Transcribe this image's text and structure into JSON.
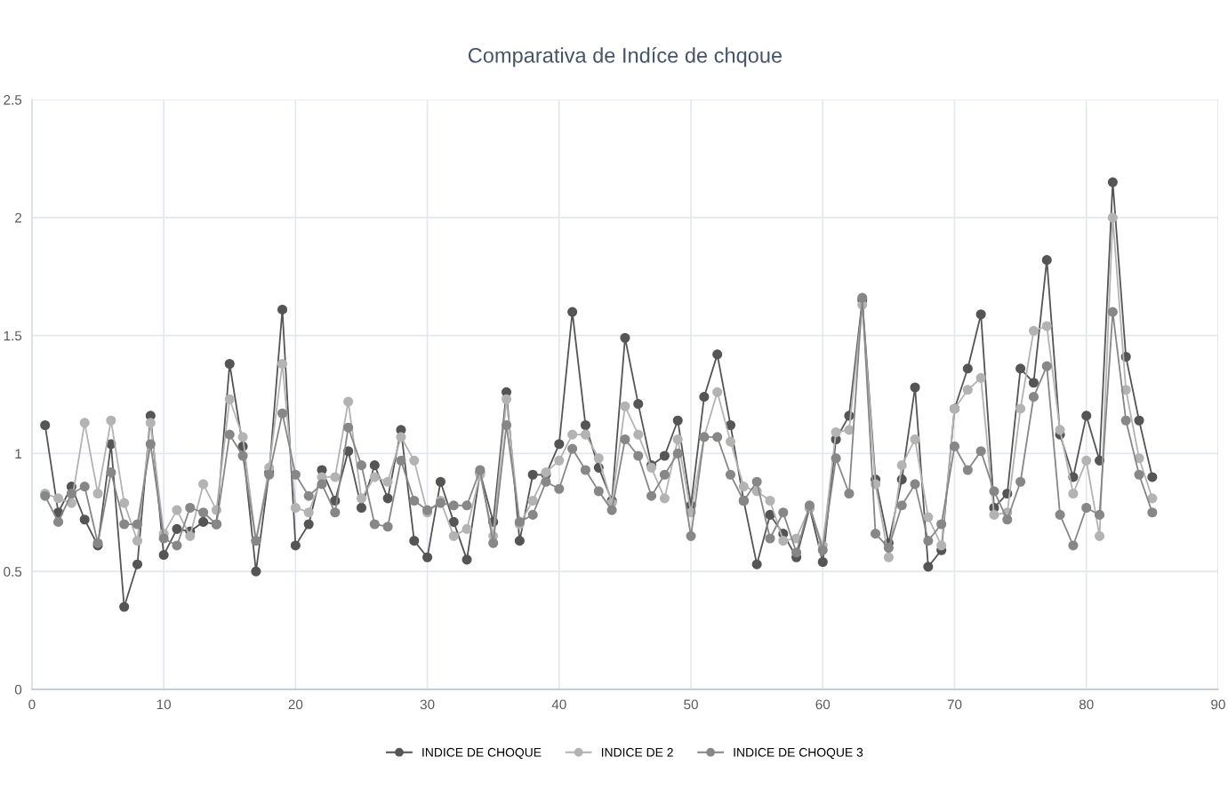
{
  "chart_data": {
    "type": "line",
    "title": "Comparativa de Indíce de chqoue",
    "x": [
      1,
      2,
      3,
      4,
      5,
      6,
      7,
      8,
      9,
      10,
      11,
      12,
      13,
      14,
      15,
      16,
      17,
      18,
      19,
      20,
      21,
      22,
      23,
      24,
      25,
      26,
      27,
      28,
      29,
      30,
      31,
      32,
      33,
      34,
      35,
      36,
      37,
      38,
      39,
      40,
      41,
      42,
      43,
      44,
      45,
      46,
      47,
      48,
      49,
      50,
      51,
      52,
      53,
      54,
      55,
      56,
      57,
      58,
      59,
      60,
      61,
      62,
      63,
      64,
      65,
      66,
      67,
      68,
      69,
      70,
      71,
      72,
      73,
      74,
      75,
      76,
      77,
      78,
      79,
      80,
      81,
      82,
      83,
      84,
      85
    ],
    "series": [
      {
        "name": "INDICE DE CHOQUE",
        "color": "#555555",
        "values": [
          1.12,
          0.75,
          0.86,
          0.72,
          0.61,
          1.04,
          0.35,
          0.53,
          1.16,
          0.57,
          0.68,
          0.67,
          0.71,
          0.7,
          1.38,
          1.03,
          0.5,
          0.92,
          1.61,
          0.61,
          0.7,
          0.93,
          0.8,
          1.01,
          0.77,
          0.95,
          0.81,
          1.1,
          0.63,
          0.56,
          0.88,
          0.71,
          0.55,
          0.92,
          0.71,
          1.26,
          0.63,
          0.91,
          0.91,
          1.04,
          1.6,
          1.12,
          0.94,
          0.8,
          1.49,
          1.21,
          0.95,
          0.99,
          1.14,
          0.78,
          1.24,
          1.42,
          1.12,
          0.8,
          0.53,
          0.74,
          0.66,
          0.56,
          0.77,
          0.54,
          1.06,
          1.16,
          1.65,
          0.89,
          0.62,
          0.89,
          1.28,
          0.52,
          0.59,
          1.19,
          1.36,
          1.59,
          0.77,
          0.83,
          1.36,
          1.3,
          1.82,
          1.08,
          0.9,
          1.16,
          0.97,
          2.15,
          1.41,
          1.14,
          0.9
        ]
      },
      {
        "name": "INDICE DE 2",
        "color": "#b3b3b3",
        "values": [
          0.83,
          0.81,
          0.79,
          1.13,
          0.83,
          1.14,
          0.79,
          0.63,
          1.13,
          0.66,
          0.76,
          0.65,
          0.87,
          0.76,
          1.23,
          1.07,
          0.63,
          0.94,
          1.38,
          0.77,
          0.75,
          0.9,
          0.9,
          1.22,
          0.81,
          0.9,
          0.88,
          1.07,
          0.97,
          0.75,
          0.8,
          0.65,
          0.68,
          0.91,
          0.65,
          1.23,
          0.7,
          0.8,
          0.92,
          0.97,
          1.08,
          1.08,
          0.98,
          0.79,
          1.2,
          1.08,
          0.94,
          0.81,
          1.06,
          0.75,
          1.07,
          1.26,
          1.05,
          0.86,
          0.84,
          0.8,
          0.63,
          0.64,
          0.77,
          0.61,
          1.09,
          1.1,
          1.63,
          0.87,
          0.56,
          0.95,
          1.06,
          0.73,
          0.61,
          1.19,
          1.27,
          1.32,
          0.74,
          0.75,
          1.19,
          1.52,
          1.54,
          1.1,
          0.83,
          0.97,
          0.65,
          2.0,
          1.27,
          0.98,
          0.81
        ]
      },
      {
        "name": "INDICE DE CHOQUE 3",
        "color": "#878787",
        "values": [
          0.82,
          0.71,
          0.83,
          0.86,
          0.62,
          0.92,
          0.7,
          0.7,
          1.04,
          0.64,
          0.61,
          0.77,
          0.75,
          0.7,
          1.08,
          0.99,
          0.63,
          0.91,
          1.17,
          0.91,
          0.82,
          0.87,
          0.75,
          1.11,
          0.95,
          0.7,
          0.69,
          0.97,
          0.8,
          0.76,
          0.79,
          0.78,
          0.78,
          0.93,
          0.62,
          1.12,
          0.71,
          0.74,
          0.88,
          0.85,
          1.02,
          0.93,
          0.84,
          0.76,
          1.06,
          0.99,
          0.82,
          0.91,
          1.0,
          0.65,
          1.07,
          1.07,
          0.91,
          0.8,
          0.88,
          0.64,
          0.75,
          0.58,
          0.78,
          0.59,
          0.98,
          0.83,
          1.66,
          0.66,
          0.6,
          0.78,
          0.87,
          0.63,
          0.7,
          1.03,
          0.93,
          1.01,
          0.84,
          0.72,
          0.88,
          1.24,
          1.37,
          0.74,
          0.61,
          0.77,
          0.74,
          1.6,
          1.14,
          0.91,
          0.75
        ]
      }
    ],
    "xlim": [
      0,
      90
    ],
    "xticks": [
      0,
      10,
      20,
      30,
      40,
      50,
      60,
      70,
      80,
      90
    ],
    "ylim": [
      0,
      2.5
    ],
    "yticks": [
      0,
      0.5,
      1,
      1.5,
      2,
      2.5
    ],
    "grid": true,
    "legend": "bottom",
    "marker": "circle",
    "line_style": "solid"
  }
}
